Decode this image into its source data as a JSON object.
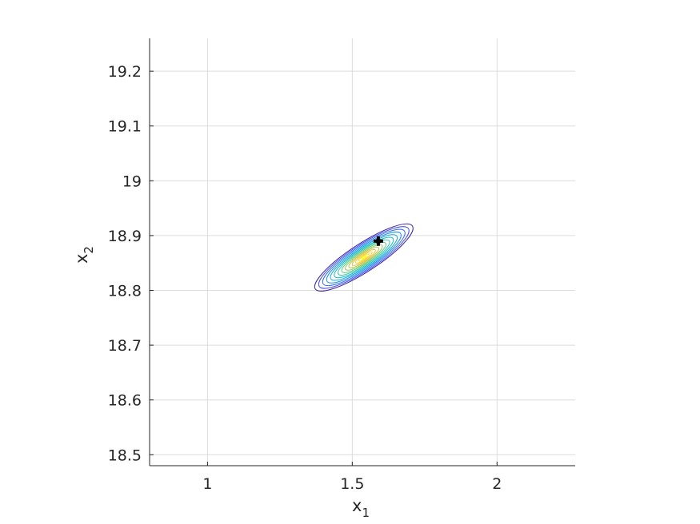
{
  "chart_data": {
    "type": "contour",
    "title": "",
    "xlabel": {
      "base": "x",
      "sub": "1"
    },
    "ylabel": {
      "base": "x",
      "sub": "2"
    },
    "xlim": [
      0.8,
      2.27
    ],
    "ylim": [
      18.48,
      19.26
    ],
    "xticks": [
      1,
      1.5,
      2
    ],
    "xtick_labels": [
      "1",
      "1.5",
      "2"
    ],
    "yticks": [
      18.5,
      18.6,
      18.7,
      18.8,
      18.9,
      19.0,
      19.1,
      19.2
    ],
    "ytick_labels": [
      "18.5",
      "18.6",
      "18.7",
      "18.8",
      "18.9",
      "19",
      "19.1",
      "19.2"
    ],
    "grid": true,
    "colormap": "parula",
    "contour": {
      "center": [
        1.54,
        18.86
      ],
      "direction_deg_in_data": 24.5,
      "levels": 14,
      "outer_semi_axes": {
        "x": 0.2,
        "y": 0.0255
      },
      "outer_color": "#3e26a8",
      "inner_color": "#f9fb0e"
    },
    "marker": {
      "x": 1.59,
      "y": 18.89,
      "shape": "cross",
      "color": "#000000"
    }
  }
}
